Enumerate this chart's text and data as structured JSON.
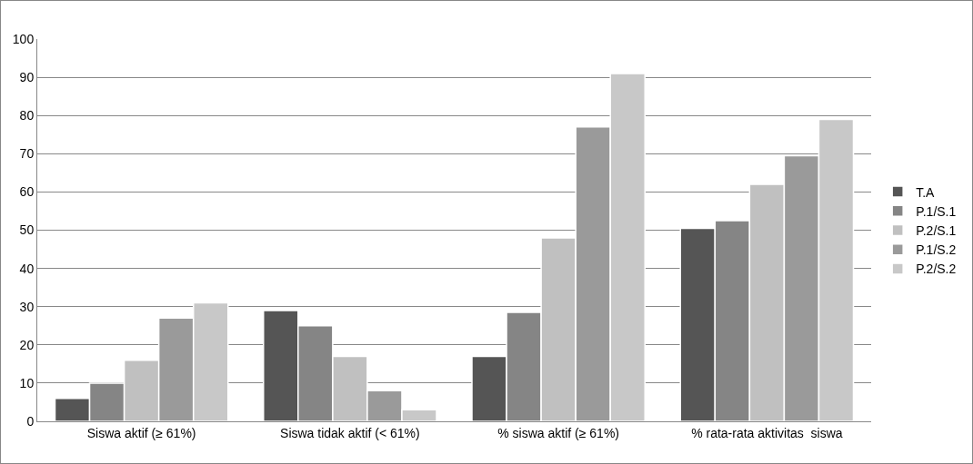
{
  "chart_data": {
    "type": "bar",
    "categories": [
      "Siswa aktif (≥ 61%)",
      "Siswa tidak aktif (< 61%)",
      "% siswa aktif (≥ 61%)",
      "% rata-rata aktivitas  siswa"
    ],
    "series": [
      {
        "name": "T.A",
        "color": "#555555",
        "values": [
          6,
          29,
          17,
          50.5
        ]
      },
      {
        "name": "P.1/S.1",
        "color": "#858585",
        "values": [
          10,
          25,
          28.5,
          52.5
        ]
      },
      {
        "name": "P.2/S.1",
        "color": "#c0c0c0",
        "values": [
          16,
          17,
          48,
          62
        ]
      },
      {
        "name": "P.1/S.2",
        "color": "#9a9a9a",
        "values": [
          27,
          8,
          77,
          69.5
        ]
      },
      {
        "name": "P.2/S.2",
        "color": "#c8c8c8",
        "values": [
          31,
          3,
          91,
          79
        ]
      }
    ],
    "ylim": [
      0,
      100
    ],
    "yticks": [
      0,
      10,
      20,
      30,
      40,
      50,
      60,
      70,
      80,
      90,
      100
    ],
    "grid": "y",
    "legend": "right"
  }
}
